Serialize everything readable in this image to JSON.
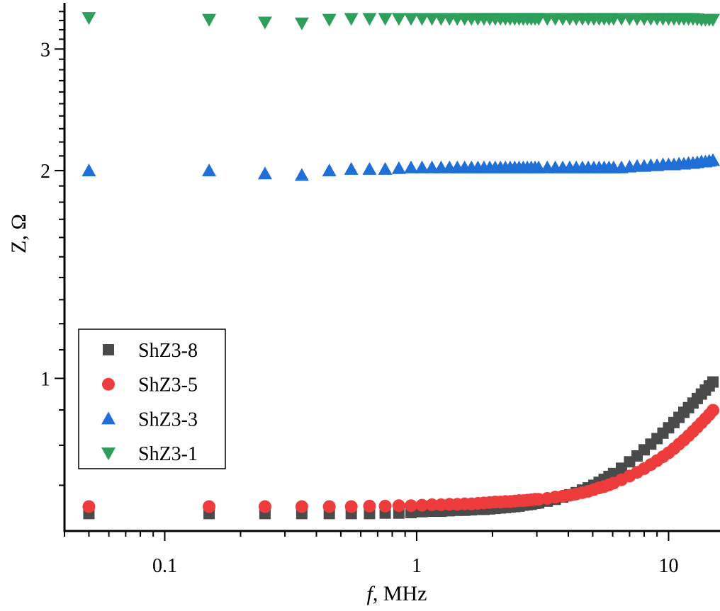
{
  "chart_data": {
    "type": "scatter",
    "xlabel_italic": "f",
    "xlabel_rest": ", MHz",
    "ylabel": "Z, Ω",
    "xscale": "log",
    "yscale": "log",
    "xlim": [
      0.04,
      16
    ],
    "ylim": [
      0.601,
      3.5
    ],
    "xticks": [
      {
        "value": 0.1,
        "label": "0.1"
      },
      {
        "value": 1,
        "label": "1"
      },
      {
        "value": 10,
        "label": "10"
      }
    ],
    "yticks": [
      {
        "value": 1,
        "label": "1"
      },
      {
        "value": 2,
        "label": "2"
      },
      {
        "value": 3,
        "label": "3"
      }
    ],
    "grid": false,
    "legend_position": "lower-left",
    "x": [
      0.05,
      0.15,
      0.25,
      0.35,
      0.45,
      0.55,
      0.65,
      0.75,
      0.85,
      0.95,
      1.05,
      1.15,
      1.25,
      1.35,
      1.45,
      1.55,
      1.65,
      1.75,
      1.85,
      1.95,
      2.05,
      2.15,
      2.25,
      2.35,
      2.45,
      2.55,
      2.65,
      2.75,
      2.85,
      2.95,
      3.05,
      3.3,
      3.55,
      3.8,
      4.05,
      4.3,
      4.55,
      4.8,
      5.05,
      5.3,
      5.55,
      5.8,
      6.05,
      6.5,
      7,
      7.5,
      8,
      8.5,
      9,
      9.5,
      10,
      10.5,
      11,
      11.5,
      12,
      12.5,
      13,
      13.5,
      14,
      14.5,
      15
    ],
    "series": [
      {
        "name": "ShZ3-8",
        "marker": "square",
        "color": "#4a4a4a",
        "values": [
          0.637,
          0.637,
          0.637,
          0.637,
          0.637,
          0.637,
          0.637,
          0.638,
          0.638,
          0.639,
          0.641,
          0.642,
          0.642,
          0.643,
          0.644,
          0.644,
          0.645,
          0.646,
          0.646,
          0.647,
          0.648,
          0.649,
          0.65,
          0.651,
          0.652,
          0.653,
          0.655,
          0.656,
          0.657,
          0.659,
          0.66,
          0.664,
          0.668,
          0.673,
          0.678,
          0.683,
          0.689,
          0.694,
          0.7,
          0.707,
          0.714,
          0.721,
          0.728,
          0.741,
          0.757,
          0.772,
          0.788,
          0.803,
          0.818,
          0.833,
          0.848,
          0.863,
          0.878,
          0.893,
          0.907,
          0.921,
          0.935,
          0.949,
          0.962,
          0.975,
          0.988
        ]
      },
      {
        "name": "ShZ3-5",
        "marker": "circle",
        "color": "#ee3b3b",
        "values": [
          0.652,
          0.652,
          0.652,
          0.652,
          0.652,
          0.652,
          0.653,
          0.653,
          0.654,
          0.654,
          0.655,
          0.656,
          0.656,
          0.657,
          0.657,
          0.658,
          0.658,
          0.659,
          0.66,
          0.661,
          0.662,
          0.662,
          0.663,
          0.663,
          0.664,
          0.665,
          0.665,
          0.666,
          0.667,
          0.668,
          0.668,
          0.67,
          0.673,
          0.675,
          0.677,
          0.68,
          0.683,
          0.686,
          0.69,
          0.694,
          0.697,
          0.701,
          0.705,
          0.713,
          0.722,
          0.731,
          0.74,
          0.75,
          0.76,
          0.77,
          0.78,
          0.791,
          0.803,
          0.814,
          0.826,
          0.838,
          0.85,
          0.862,
          0.874,
          0.886,
          0.899
        ]
      },
      {
        "name": "ShZ3-3",
        "marker": "triangle-up",
        "color": "#1f6fd6",
        "values": [
          2.0,
          2.0,
          1.98,
          1.97,
          2.0,
          2.01,
          2.01,
          2.01,
          2.015,
          2.02,
          2.02,
          2.02,
          2.02,
          2.02,
          2.02,
          2.02,
          2.02,
          2.02,
          2.02,
          2.02,
          2.02,
          2.02,
          2.02,
          2.02,
          2.02,
          2.02,
          2.02,
          2.02,
          2.02,
          2.02,
          2.02,
          2.02,
          2.02,
          2.02,
          2.02,
          2.02,
          2.02,
          2.02,
          2.02,
          2.02,
          2.02,
          2.02,
          2.02,
          2.02,
          2.025,
          2.03,
          2.03,
          2.035,
          2.035,
          2.04,
          2.04,
          2.04,
          2.045,
          2.045,
          2.05,
          2.05,
          2.055,
          2.06,
          2.06,
          2.065,
          2.07
        ]
      },
      {
        "name": "ShZ3-1",
        "marker": "triangle-down",
        "color": "#2e9e5b",
        "values": [
          3.33,
          3.31,
          3.28,
          3.27,
          3.31,
          3.32,
          3.32,
          3.32,
          3.32,
          3.32,
          3.32,
          3.32,
          3.32,
          3.32,
          3.32,
          3.32,
          3.32,
          3.32,
          3.32,
          3.32,
          3.32,
          3.32,
          3.32,
          3.32,
          3.32,
          3.32,
          3.32,
          3.32,
          3.32,
          3.32,
          3.32,
          3.32,
          3.32,
          3.32,
          3.32,
          3.32,
          3.32,
          3.32,
          3.32,
          3.32,
          3.32,
          3.32,
          3.32,
          3.32,
          3.32,
          3.32,
          3.32,
          3.32,
          3.32,
          3.32,
          3.32,
          3.32,
          3.32,
          3.32,
          3.32,
          3.32,
          3.315,
          3.31,
          3.31,
          3.31,
          3.31
        ]
      }
    ]
  }
}
